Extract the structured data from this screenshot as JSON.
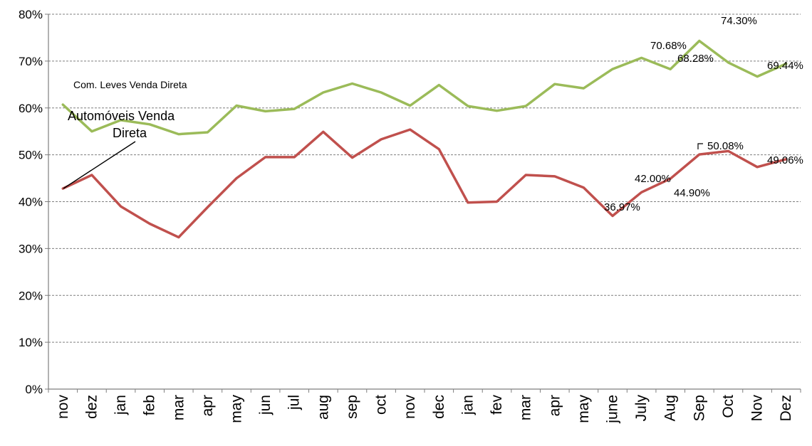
{
  "chart_data": {
    "type": "line",
    "categories": [
      "nov",
      "dez",
      "jan",
      "feb",
      "mar",
      "apr",
      "may",
      "jun",
      "jul",
      "aug",
      "sep",
      "oct",
      "nov",
      "dec",
      "jan",
      "fev",
      "mar",
      "apr",
      "may",
      "june",
      "July",
      "Aug",
      "Sep",
      "Oct",
      "Nov",
      "Dez"
    ],
    "ylim": [
      0,
      80
    ],
    "yticks": [
      "0%",
      "10%",
      "20%",
      "30%",
      "40%",
      "50%",
      "60%",
      "70%",
      "80%"
    ],
    "grid": true,
    "series": [
      {
        "name": "Com. Leves Venda Direta",
        "color": "#9bbb59",
        "values": [
          60.7,
          55.0,
          57.4,
          56.5,
          54.4,
          54.8,
          60.5,
          59.3,
          59.8,
          63.3,
          65.2,
          63.3,
          60.5,
          64.9,
          60.4,
          59.4,
          60.4,
          65.1,
          64.2,
          68.3,
          70.68,
          68.28,
          74.3,
          69.7,
          66.7,
          69.44
        ]
      },
      {
        "name": "Automóveis Venda Direta",
        "color": "#c0504d",
        "values": [
          42.8,
          45.7,
          39.0,
          35.3,
          32.4,
          38.8,
          45.0,
          49.5,
          49.5,
          54.9,
          49.4,
          53.3,
          55.4,
          51.2,
          39.8,
          40.0,
          45.7,
          45.4,
          43.0,
          36.97,
          42.0,
          44.9,
          50.08,
          50.8,
          47.4,
          49.06
        ]
      }
    ],
    "data_labels": [
      {
        "text": "70.68%"
      },
      {
        "text": "68.28%"
      },
      {
        "text": "74.30%"
      },
      {
        "text": "69.44%"
      },
      {
        "text": "36.97%"
      },
      {
        "text": "42.00%"
      },
      {
        "text": "44.90%"
      },
      {
        "text": "50.08%"
      },
      {
        "text": "49.06%"
      }
    ],
    "series_annotations": {
      "light_commercial": "Com. Leves Venda Direta",
      "cars_line1": "Automóveis Venda",
      "cars_line2": "Direta"
    }
  }
}
